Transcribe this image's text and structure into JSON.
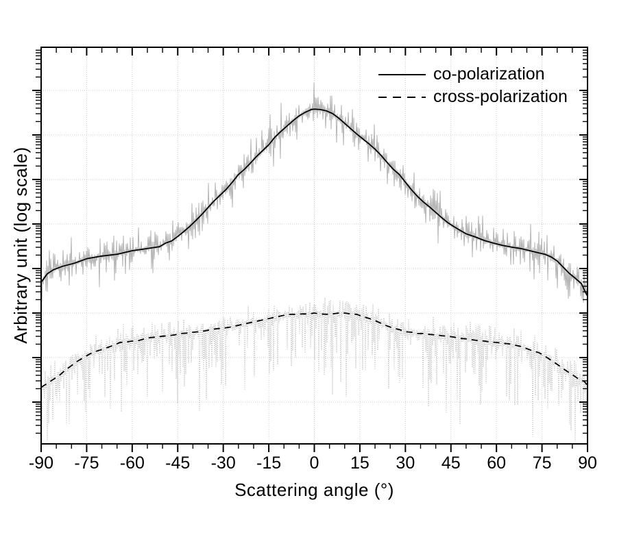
{
  "chart_data": {
    "type": "line",
    "title": "",
    "xlabel": "Scattering angle (°)",
    "ylabel": "Arbitrary unit (log scale)",
    "x_axis": {
      "min": -90,
      "max": 90,
      "major_tick_step": 15,
      "minor_tick_step": 5,
      "tick_labels": [
        "-90",
        "-75",
        "-60",
        "-45",
        "-30",
        "-15",
        "0",
        "15",
        "30",
        "45",
        "60",
        "75",
        "90"
      ]
    },
    "y_axis": {
      "scale": "log",
      "numeric_labels_visible": false,
      "decade_lines": [
        1,
        2,
        3,
        4,
        5,
        6,
        7,
        8
      ],
      "log_minor_ticks": true
    },
    "grid": {
      "vertical_every_deg": 15,
      "horizontal_every_decade": true,
      "style": "dotted",
      "color": "#cccccc"
    },
    "legend": {
      "position": "top-right-inside",
      "entries": [
        {
          "label": "co-polarization",
          "line_style": "solid",
          "color": "#000000"
        },
        {
          "label": "cross-polarization",
          "line_style": "dashed",
          "color": "#000000"
        }
      ]
    },
    "series": [
      {
        "name": "co-polarization",
        "style": "solid",
        "color": "#000000",
        "raw_trace": {
          "color": "#b4b4b4",
          "style": "solid",
          "seed": 99,
          "spread_up_decades": 0.7,
          "spread_down_decades": 0.8
        },
        "points": [
          [
            -90,
            3.69
          ],
          [
            -88,
            3.88
          ],
          [
            -86,
            3.97
          ],
          [
            -83,
            4.05
          ],
          [
            -79,
            4.12
          ],
          [
            -75,
            4.22
          ],
          [
            -70,
            4.28
          ],
          [
            -65,
            4.32
          ],
          [
            -60,
            4.4
          ],
          [
            -57,
            4.43
          ],
          [
            -54,
            4.46
          ],
          [
            -51,
            4.49
          ],
          [
            -49,
            4.57
          ],
          [
            -47,
            4.62
          ],
          [
            -45,
            4.72
          ],
          [
            -43,
            4.83
          ],
          [
            -41,
            4.95
          ],
          [
            -39,
            5.08
          ],
          [
            -37,
            5.22
          ],
          [
            -35,
            5.37
          ],
          [
            -33,
            5.52
          ],
          [
            -31,
            5.65
          ],
          [
            -29,
            5.78
          ],
          [
            -27,
            5.94
          ],
          [
            -25,
            6.11
          ],
          [
            -23,
            6.23
          ],
          [
            -21,
            6.37
          ],
          [
            -19,
            6.52
          ],
          [
            -17,
            6.65
          ],
          [
            -15,
            6.78
          ],
          [
            -13,
            6.95
          ],
          [
            -11,
            7.08
          ],
          [
            -9,
            7.2
          ],
          [
            -7,
            7.32
          ],
          [
            -5,
            7.43
          ],
          [
            -3,
            7.51
          ],
          [
            -1,
            7.57
          ],
          [
            0,
            7.58
          ],
          [
            2,
            7.57
          ],
          [
            4,
            7.54
          ],
          [
            6,
            7.48
          ],
          [
            8,
            7.38
          ],
          [
            10,
            7.26
          ],
          [
            12,
            7.14
          ],
          [
            14,
            7.02
          ],
          [
            16,
            6.91
          ],
          [
            18,
            6.8
          ],
          [
            20,
            6.68
          ],
          [
            22,
            6.54
          ],
          [
            24,
            6.38
          ],
          [
            26,
            6.23
          ],
          [
            28,
            6.11
          ],
          [
            30,
            5.94
          ],
          [
            32,
            5.77
          ],
          [
            34,
            5.62
          ],
          [
            36,
            5.49
          ],
          [
            38,
            5.38
          ],
          [
            40,
            5.26
          ],
          [
            42,
            5.14
          ],
          [
            44,
            5.03
          ],
          [
            46,
            4.94
          ],
          [
            48,
            4.86
          ],
          [
            50,
            4.78
          ],
          [
            53,
            4.71
          ],
          [
            56,
            4.63
          ],
          [
            59,
            4.57
          ],
          [
            62,
            4.52
          ],
          [
            65,
            4.48
          ],
          [
            68,
            4.45
          ],
          [
            71,
            4.4
          ],
          [
            74,
            4.35
          ],
          [
            76,
            4.32
          ],
          [
            78,
            4.26
          ],
          [
            80,
            4.17
          ],
          [
            82,
            4.03
          ],
          [
            84,
            3.89
          ],
          [
            86,
            3.78
          ],
          [
            87,
            3.72
          ],
          [
            88,
            3.66
          ],
          [
            89,
            3.51
          ],
          [
            90,
            3.38
          ]
        ]
      },
      {
        "name": "cross-polarization",
        "style": "dashed",
        "color": "#000000",
        "raw_trace": {
          "color": "#b4b4b4",
          "style": "dotted",
          "seed": 1234,
          "spread_up_decades": 0.45,
          "spread_down_decades": 2.3
        },
        "points": [
          [
            -90,
            1.33
          ],
          [
            -88,
            1.42
          ],
          [
            -86,
            1.51
          ],
          [
            -84,
            1.6
          ],
          [
            -82,
            1.72
          ],
          [
            -80,
            1.82
          ],
          [
            -78,
            1.92
          ],
          [
            -76,
            2.0
          ],
          [
            -74,
            2.08
          ],
          [
            -72,
            2.14
          ],
          [
            -70,
            2.18
          ],
          [
            -68,
            2.23
          ],
          [
            -66,
            2.28
          ],
          [
            -64,
            2.34
          ],
          [
            -62,
            2.35
          ],
          [
            -60,
            2.37
          ],
          [
            -58,
            2.38
          ],
          [
            -56,
            2.42
          ],
          [
            -54,
            2.45
          ],
          [
            -52,
            2.46
          ],
          [
            -50,
            2.48
          ],
          [
            -48,
            2.49
          ],
          [
            -46,
            2.51
          ],
          [
            -44,
            2.54
          ],
          [
            -42,
            2.55
          ],
          [
            -40,
            2.57
          ],
          [
            -38,
            2.58
          ],
          [
            -36,
            2.6
          ],
          [
            -34,
            2.63
          ],
          [
            -32,
            2.65
          ],
          [
            -30,
            2.66
          ],
          [
            -28,
            2.68
          ],
          [
            -26,
            2.71
          ],
          [
            -24,
            2.74
          ],
          [
            -22,
            2.77
          ],
          [
            -20,
            2.8
          ],
          [
            -18,
            2.83
          ],
          [
            -16,
            2.86
          ],
          [
            -14,
            2.89
          ],
          [
            -12,
            2.92
          ],
          [
            -10,
            2.95
          ],
          [
            -8,
            2.97
          ],
          [
            -6,
            2.97
          ],
          [
            -4,
            2.98
          ],
          [
            -2,
            2.98
          ],
          [
            0,
            3.0
          ],
          [
            2,
            2.98
          ],
          [
            4,
            2.97
          ],
          [
            6,
            2.98
          ],
          [
            8,
            3.0
          ],
          [
            10,
            3.0
          ],
          [
            12,
            2.98
          ],
          [
            14,
            2.97
          ],
          [
            16,
            2.92
          ],
          [
            18,
            2.88
          ],
          [
            20,
            2.83
          ],
          [
            22,
            2.77
          ],
          [
            24,
            2.71
          ],
          [
            26,
            2.66
          ],
          [
            28,
            2.63
          ],
          [
            30,
            2.58
          ],
          [
            32,
            2.57
          ],
          [
            34,
            2.54
          ],
          [
            36,
            2.54
          ],
          [
            38,
            2.52
          ],
          [
            40,
            2.51
          ],
          [
            42,
            2.49
          ],
          [
            44,
            2.48
          ],
          [
            46,
            2.46
          ],
          [
            48,
            2.43
          ],
          [
            50,
            2.42
          ],
          [
            52,
            2.4
          ],
          [
            54,
            2.38
          ],
          [
            56,
            2.37
          ],
          [
            58,
            2.35
          ],
          [
            60,
            2.34
          ],
          [
            62,
            2.32
          ],
          [
            64,
            2.31
          ],
          [
            66,
            2.28
          ],
          [
            68,
            2.25
          ],
          [
            70,
            2.2
          ],
          [
            72,
            2.15
          ],
          [
            74,
            2.11
          ],
          [
            76,
            2.03
          ],
          [
            78,
            1.94
          ],
          [
            80,
            1.85
          ],
          [
            82,
            1.75
          ],
          [
            84,
            1.66
          ],
          [
            86,
            1.57
          ],
          [
            87,
            1.52
          ],
          [
            88,
            1.49
          ],
          [
            89,
            1.46
          ],
          [
            90,
            1.37
          ]
        ]
      }
    ]
  }
}
